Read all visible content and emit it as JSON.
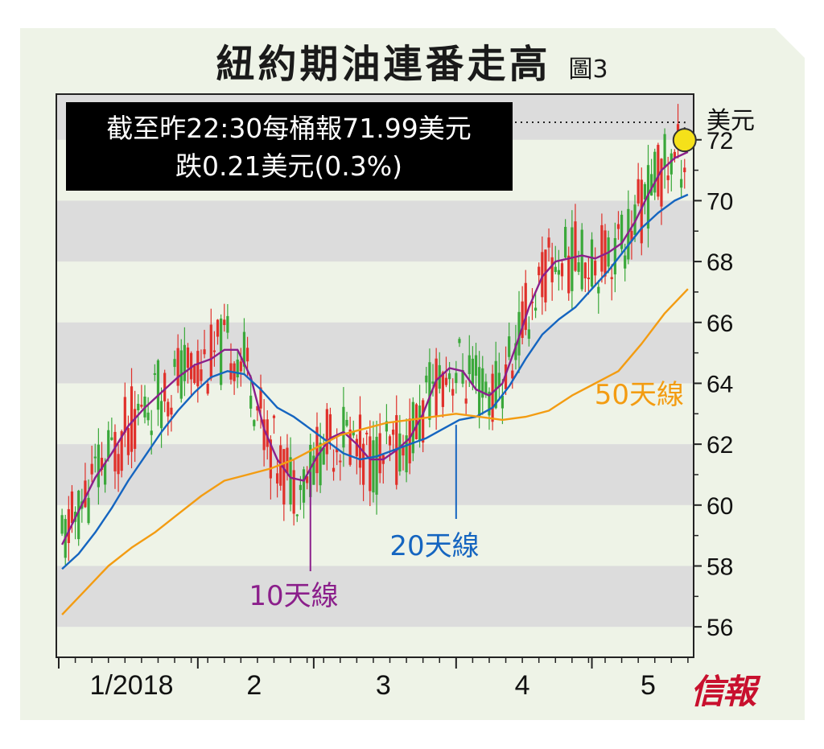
{
  "title": "紐約期油連番走高",
  "figure_label": "圖3",
  "logo_text": "信報",
  "colors": {
    "ma10": "#8b1f8b",
    "ma20": "#1565c0",
    "ma50": "#f39c12",
    "up": "#3aa83a",
    "down": "#e0302a",
    "band": "#dcdcdc",
    "marker": "#f5e11a"
  },
  "chart_data": {
    "type": "line",
    "unit_label": "美元",
    "ylim": [
      55,
      73.5
    ],
    "y_ticks": [
      56,
      58,
      60,
      62,
      64,
      66,
      68,
      70,
      72
    ],
    "x_ticks": [
      "1/2018",
      "2",
      "3",
      "4",
      "5"
    ],
    "annotation": {
      "line1": "截至昨22:30每桶報71.99美元",
      "line2": "跌0.21美元(0.3%)",
      "value": 71.99
    },
    "series": [
      {
        "name": "10天線",
        "values": [
          [
            1,
            58.7
          ],
          [
            6,
            59.8
          ],
          [
            11,
            60.9
          ],
          [
            16,
            61.7
          ],
          [
            21,
            62.6
          ],
          [
            26,
            63.2
          ],
          [
            31,
            63.7
          ],
          [
            36,
            64.2
          ],
          [
            41,
            64.6
          ],
          [
            46,
            64.8
          ],
          [
            50,
            65.1
          ],
          [
            54,
            65.1
          ],
          [
            58,
            64.2
          ],
          [
            62,
            62.5
          ],
          [
            66,
            61.5
          ],
          [
            70,
            60.9
          ],
          [
            74,
            60.8
          ],
          [
            78,
            61.6
          ],
          [
            82,
            62.2
          ],
          [
            86,
            62.4
          ],
          [
            90,
            62.0
          ],
          [
            94,
            61.5
          ],
          [
            98,
            61.5
          ],
          [
            102,
            61.8
          ],
          [
            106,
            62.2
          ],
          [
            110,
            63.0
          ],
          [
            114,
            64.1
          ],
          [
            118,
            64.5
          ],
          [
            122,
            64.4
          ],
          [
            126,
            63.8
          ],
          [
            130,
            63.6
          ],
          [
            134,
            64.0
          ],
          [
            138,
            65.2
          ],
          [
            142,
            66.5
          ],
          [
            146,
            67.5
          ],
          [
            150,
            68.0
          ],
          [
            154,
            68.1
          ],
          [
            158,
            68.2
          ],
          [
            162,
            68.1
          ],
          [
            166,
            68.3
          ],
          [
            170,
            68.6
          ],
          [
            174,
            69.3
          ],
          [
            178,
            70.2
          ],
          [
            182,
            71.0
          ],
          [
            186,
            71.4
          ],
          [
            190,
            71.6
          ]
        ]
      },
      {
        "name": "20天線",
        "values": [
          [
            1,
            57.9
          ],
          [
            6,
            58.4
          ],
          [
            11,
            59.1
          ],
          [
            16,
            59.9
          ],
          [
            21,
            60.8
          ],
          [
            26,
            61.6
          ],
          [
            31,
            62.4
          ],
          [
            36,
            63.1
          ],
          [
            41,
            63.7
          ],
          [
            46,
            64.2
          ],
          [
            51,
            64.4
          ],
          [
            56,
            64.3
          ],
          [
            61,
            63.8
          ],
          [
            66,
            63.2
          ],
          [
            71,
            62.9
          ],
          [
            76,
            62.5
          ],
          [
            81,
            62.1
          ],
          [
            86,
            61.7
          ],
          [
            91,
            61.5
          ],
          [
            96,
            61.6
          ],
          [
            101,
            61.8
          ],
          [
            106,
            62.0
          ],
          [
            111,
            62.2
          ],
          [
            116,
            62.5
          ],
          [
            121,
            62.8
          ],
          [
            126,
            62.9
          ],
          [
            131,
            63.2
          ],
          [
            136,
            63.9
          ],
          [
            141,
            64.8
          ],
          [
            146,
            65.6
          ],
          [
            151,
            66.1
          ],
          [
            156,
            66.5
          ],
          [
            161,
            67.1
          ],
          [
            166,
            67.7
          ],
          [
            171,
            68.4
          ],
          [
            176,
            69.1
          ],
          [
            181,
            69.6
          ],
          [
            186,
            70.0
          ],
          [
            190,
            70.2
          ]
        ]
      },
      {
        "name": "50天線",
        "values": [
          [
            1,
            56.4
          ],
          [
            8,
            57.2
          ],
          [
            15,
            58.0
          ],
          [
            22,
            58.6
          ],
          [
            29,
            59.1
          ],
          [
            36,
            59.7
          ],
          [
            43,
            60.3
          ],
          [
            50,
            60.8
          ],
          [
            57,
            61.0
          ],
          [
            64,
            61.2
          ],
          [
            71,
            61.5
          ],
          [
            78,
            61.9
          ],
          [
            85,
            62.3
          ],
          [
            92,
            62.5
          ],
          [
            99,
            62.7
          ],
          [
            106,
            62.8
          ],
          [
            113,
            62.9
          ],
          [
            120,
            63.0
          ],
          [
            127,
            62.9
          ],
          [
            134,
            62.8
          ],
          [
            141,
            62.9
          ],
          [
            148,
            63.1
          ],
          [
            155,
            63.6
          ],
          [
            162,
            64.0
          ],
          [
            169,
            64.4
          ],
          [
            176,
            65.3
          ],
          [
            183,
            66.3
          ],
          [
            190,
            67.1
          ]
        ]
      }
    ],
    "series_labels": [
      "10天線",
      "20天線",
      "50天線"
    ]
  }
}
